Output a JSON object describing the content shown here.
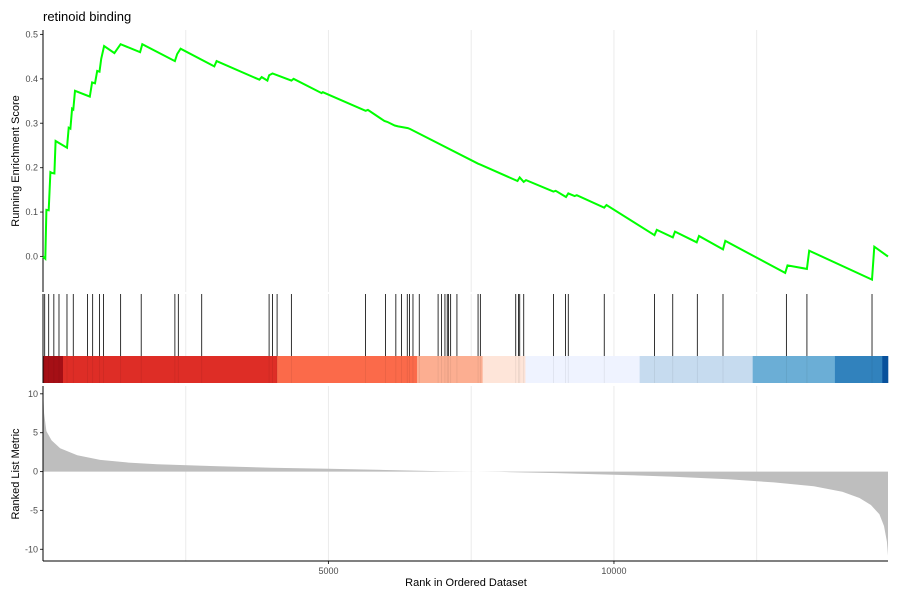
{
  "chart_data": [
    {
      "type": "line",
      "panel": "running-enrichment-score",
      "title": "retinoid binding",
      "xlabel": "",
      "ylabel": "Running Enrichment Score",
      "xlim": [
        0,
        14800
      ],
      "ylim": [
        -0.08,
        0.51
      ],
      "y_ticks": [
        "0.0",
        "0.1",
        "0.2",
        "0.3",
        "0.4",
        "0.5"
      ],
      "y_tick_values": [
        0.0,
        0.1,
        0.2,
        0.3,
        0.4,
        0.5
      ],
      "grid_x_values": [
        2500,
        5000,
        7500,
        10000,
        12500
      ],
      "line_color": "#00ff00",
      "series": [
        {
          "x": [
            0,
            40,
            60,
            100,
            130,
            160,
            200,
            220,
            420,
            450,
            480,
            510,
            530,
            560,
            820,
            860,
            910,
            950,
            990,
            1020,
            1070,
            1250,
            1360,
            1700,
            1740,
            2310,
            2350,
            2410,
            3000,
            3040,
            3790,
            3830,
            3930,
            3960,
            4020,
            4350,
            4390,
            4880,
            4900,
            5650,
            5690,
            5980,
            6030,
            6160,
            6220,
            6390,
            6430,
            7620,
            7660,
            8310,
            8350,
            8420,
            8460,
            8940,
            8980,
            9160,
            9200,
            9310,
            9350,
            9830,
            9870,
            10710,
            10750,
            11030,
            11070,
            11450,
            11490,
            11910,
            11950,
            13000,
            13040,
            13380,
            13420,
            14520,
            14560,
            14800
          ],
          "y": [
            0.0,
            -0.005,
            0.105,
            0.104,
            0.19,
            0.188,
            0.187,
            0.26,
            0.245,
            0.29,
            0.288,
            0.333,
            0.331,
            0.373,
            0.36,
            0.392,
            0.39,
            0.418,
            0.416,
            0.445,
            0.474,
            0.458,
            0.478,
            0.46,
            0.478,
            0.44,
            0.456,
            0.468,
            0.428,
            0.44,
            0.398,
            0.404,
            0.396,
            0.408,
            0.412,
            0.396,
            0.4,
            0.368,
            0.37,
            0.328,
            0.33,
            0.305,
            0.303,
            0.295,
            0.293,
            0.289,
            0.287,
            0.209,
            0.207,
            0.17,
            0.178,
            0.168,
            0.172,
            0.146,
            0.148,
            0.134,
            0.142,
            0.136,
            0.138,
            0.11,
            0.116,
            0.048,
            0.06,
            0.043,
            0.056,
            0.032,
            0.046,
            0.016,
            0.035,
            -0.037,
            -0.02,
            -0.028,
            0.013,
            -0.052,
            0.022,
            0.0
          ]
        }
      ]
    },
    {
      "type": "scatter",
      "panel": "gene-set-hits",
      "xlim": [
        0,
        14800
      ],
      "hit_positions": [
        30,
        100,
        190,
        280,
        420,
        530,
        780,
        870,
        990,
        1060,
        1360,
        1720,
        2310,
        2370,
        2780,
        3960,
        4020,
        4100,
        4350,
        5650,
        6000,
        6180,
        6280,
        6380,
        6420,
        6480,
        6590,
        6920,
        6980,
        7040,
        7080,
        7100,
        7140,
        7250,
        7620,
        7660,
        8280,
        8330,
        8350,
        8420,
        8940,
        9150,
        9200,
        9830,
        10710,
        11030,
        11460,
        11910,
        13020,
        13380,
        14520
      ],
      "color_bands": [
        {
          "from": 0,
          "to": 350,
          "color": "#a50f15"
        },
        {
          "from": 350,
          "to": 4100,
          "color": "#de2d26"
        },
        {
          "from": 4100,
          "to": 6550,
          "color": "#fb6a4a"
        },
        {
          "from": 6550,
          "to": 7700,
          "color": "#fcae91"
        },
        {
          "from": 7700,
          "to": 8450,
          "color": "#fee5d9"
        },
        {
          "from": 8450,
          "to": 10450,
          "color": "#eff3ff"
        },
        {
          "from": 10450,
          "to": 12430,
          "color": "#c6dbef"
        },
        {
          "from": 12430,
          "to": 13870,
          "color": "#6baed6"
        },
        {
          "from": 13870,
          "to": 14700,
          "color": "#3182bd"
        },
        {
          "from": 14700,
          "to": 14800,
          "color": "#08519c"
        }
      ]
    },
    {
      "type": "area",
      "panel": "ranked-list-metric",
      "xlabel": "Rank in Ordered Dataset",
      "ylabel": "Ranked List Metric",
      "xlim": [
        0,
        14800
      ],
      "ylim": [
        -11.5,
        11
      ],
      "x_ticks": [
        "5000",
        "10000"
      ],
      "x_tick_values": [
        5000,
        10000
      ],
      "y_ticks": [
        "-10",
        "-5",
        "0",
        "5",
        "10"
      ],
      "y_tick_values": [
        -10,
        -5,
        0,
        5,
        10
      ],
      "fill_color": "#bebebe",
      "x": [
        0,
        20,
        60,
        150,
        300,
        600,
        1000,
        1500,
        2000,
        3000,
        4000,
        5000,
        6000,
        7000,
        8000,
        9000,
        10000,
        11000,
        12000,
        12800,
        13500,
        14000,
        14300,
        14500,
        14650,
        14730,
        14780,
        14800
      ],
      "values": [
        10.5,
        7.5,
        5.2,
        4.0,
        3.0,
        2.1,
        1.5,
        1.15,
        0.95,
        0.7,
        0.5,
        0.35,
        0.2,
        0.05,
        -0.05,
        -0.2,
        -0.4,
        -0.65,
        -1.0,
        -1.4,
        -1.9,
        -2.6,
        -3.4,
        -4.3,
        -5.5,
        -7.0,
        -9.0,
        -10.8
      ]
    }
  ]
}
